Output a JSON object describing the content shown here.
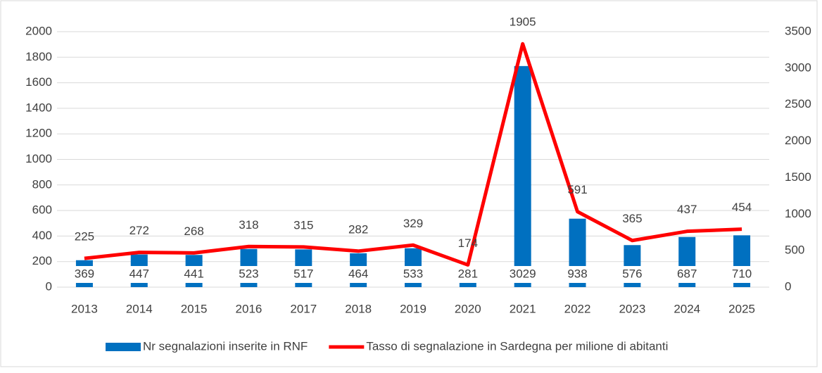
{
  "chart_data": {
    "type": "bar-line",
    "categories": [
      "2013",
      "2014",
      "2015",
      "2016",
      "2017",
      "2018",
      "2019",
      "2020",
      "2021",
      "2022",
      "2023",
      "2024",
      "2025"
    ],
    "series": [
      {
        "name": "Nr segnalazioni inserite in RNF",
        "color": "#0070c0",
        "type": "bar",
        "axis": "y2",
        "values": [
          369,
          447,
          441,
          523,
          517,
          464,
          533,
          281,
          3029,
          938,
          576,
          687,
          710
        ]
      },
      {
        "name": "Tasso di segnalazione in Sardegna per milione di abitanti",
        "color": "#ff0000",
        "type": "line",
        "axis": "y",
        "values": [
          225,
          272,
          268,
          318,
          315,
          282,
          329,
          174,
          1905,
          591,
          365,
          437,
          454
        ]
      }
    ],
    "ylim": [
      0,
      2000
    ],
    "yticks": [
      0,
      200,
      400,
      600,
      800,
      1000,
      1200,
      1400,
      1600,
      1800,
      2000
    ],
    "y2lim": [
      0,
      3500
    ],
    "y2ticks": [
      0,
      500,
      1000,
      1500,
      2000,
      2500,
      3000,
      3500
    ],
    "grid": true,
    "legend": "bottom"
  }
}
